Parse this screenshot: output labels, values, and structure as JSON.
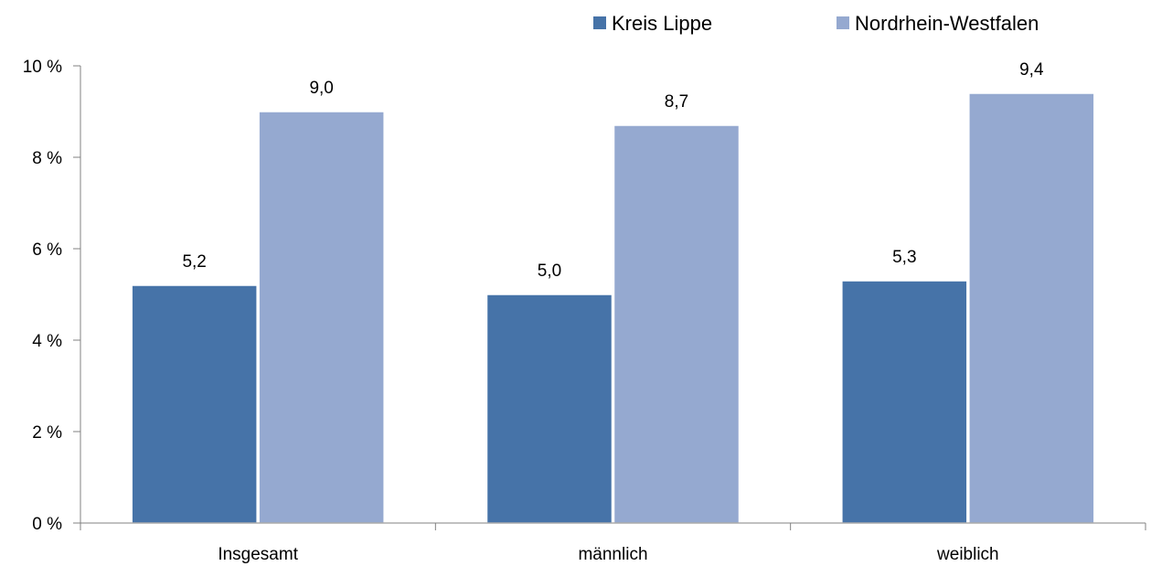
{
  "chart_data": {
    "type": "bar",
    "categories": [
      "Insgesamt",
      "männlich",
      "weiblich"
    ],
    "series": [
      {
        "name": "Kreis Lippe",
        "values": [
          5.2,
          5.0,
          5.3
        ],
        "labels": [
          "5,2",
          "5,0",
          "5,3"
        ],
        "color": "#4673A8"
      },
      {
        "name": "Nordrhein-Westfalen",
        "values": [
          9.0,
          8.7,
          9.4
        ],
        "labels": [
          "9,0",
          "8,7",
          "9,4"
        ],
        "color": "#95A9D0"
      }
    ],
    "ylim": [
      0,
      10
    ],
    "yticks": [
      0,
      2,
      4,
      6,
      8,
      10
    ],
    "ytick_labels": [
      "0 %",
      "2 %",
      "4 %",
      "6 %",
      "8 %",
      "10 %"
    ],
    "title": "",
    "xlabel": "",
    "ylabel": "",
    "grid": false,
    "legend_position": "top-right",
    "axis_color": "#808080"
  }
}
